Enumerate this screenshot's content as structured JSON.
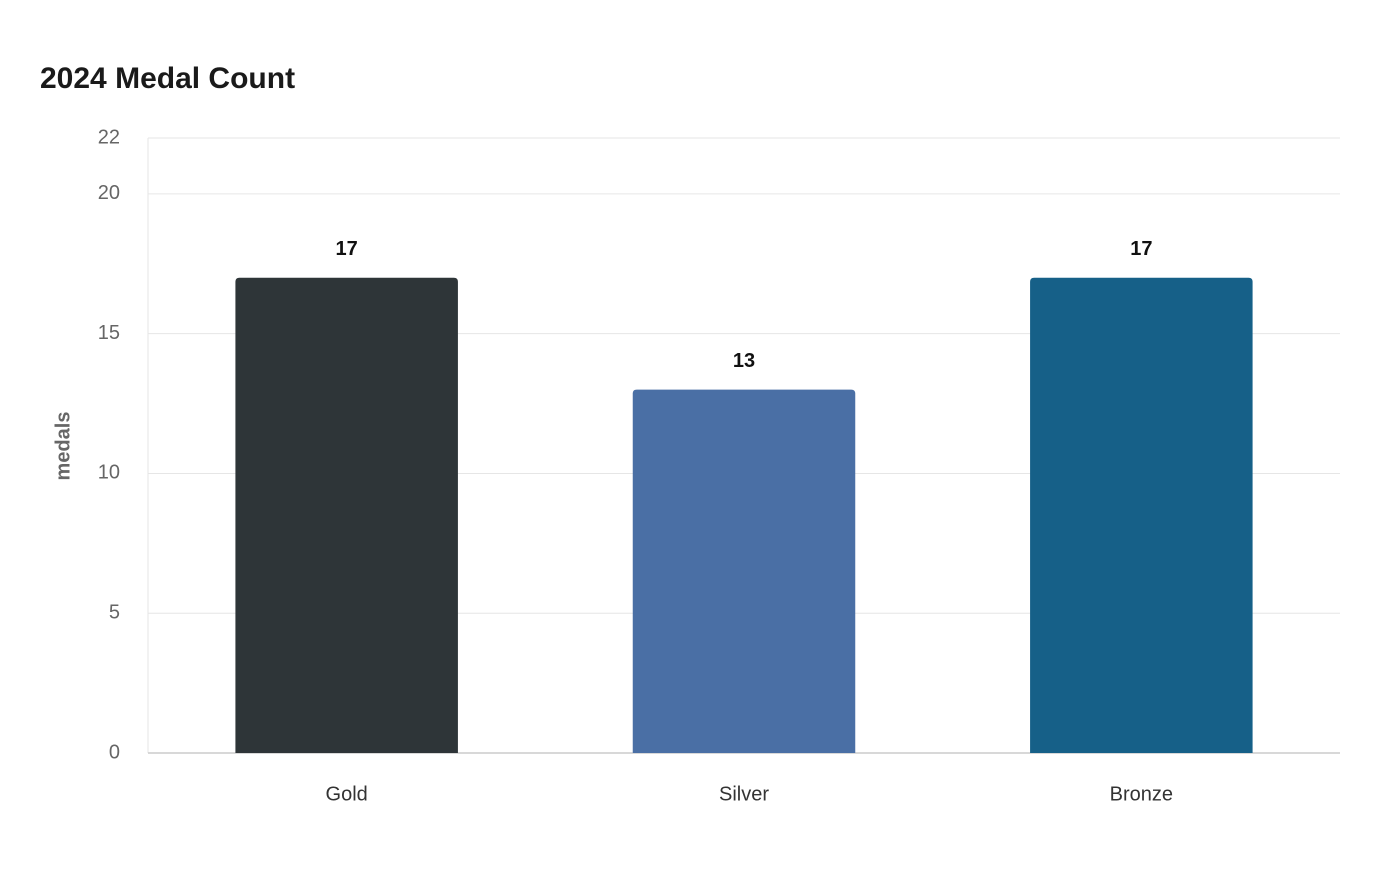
{
  "chart_data": {
    "type": "bar",
    "title": "2024 Medal Count",
    "y_label": "medals",
    "categories": [
      "Gold",
      "Silver",
      "Bronze"
    ],
    "values": [
      17,
      13,
      17
    ],
    "colors": [
      "#2e3538",
      "#4a6fa5",
      "#166088"
    ],
    "ylim": [
      0,
      22
    ],
    "yticks": [
      0,
      5,
      10,
      15,
      20,
      22
    ],
    "grid": true,
    "data_labels": true
  }
}
